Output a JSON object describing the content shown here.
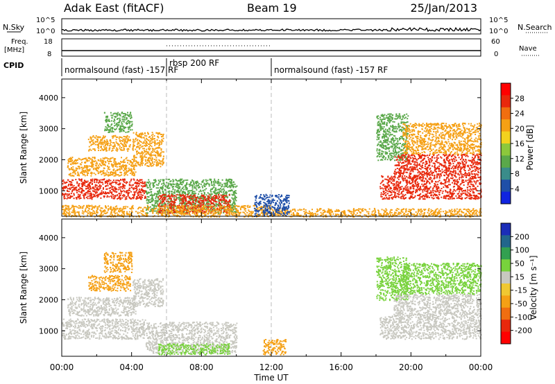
{
  "header": {
    "station": "Adak East (fitACF)",
    "beam": "Beam 19",
    "date": "25/Jan/2013"
  },
  "labels": {
    "nsky": "N.Sky",
    "nsearch": "N.Search",
    "freq_line1": "Freq.",
    "freq_line2": "[MHz]",
    "nave": "Nave",
    "cpid": "CPID",
    "nsky_top": "10^5",
    "nsky_bottom": "10^0",
    "freq_top": "18",
    "freq_bottom": "8",
    "nave_top": "60",
    "nave_bottom": "0",
    "cpid_segments": [
      "normalsound (fast) -157 RF",
      "rbsp 200 RF",
      "normalsound (fast) -157 RF"
    ]
  },
  "chart_data": [
    {
      "type": "heatmap",
      "panel": "power",
      "xlabel": "",
      "ylabel": "Slant Range [km]",
      "x_ticks": [
        "00:00",
        "04:00",
        "08:00",
        "12:00",
        "16:00",
        "20:00",
        "00:00"
      ],
      "y_ticks": [
        1000,
        2000,
        3000,
        4000
      ],
      "x_range_hours": [
        0,
        24
      ],
      "y_range_km": [
        180,
        4600
      ],
      "colorbar": {
        "label": "Power [dB]",
        "ticks": [
          4,
          8,
          12,
          16,
          20,
          24,
          28
        ],
        "colors": [
          "#1024e0",
          "#1f4fa8",
          "#3a8c8a",
          "#5aa84a",
          "#8cc83c",
          "#f2d21e",
          "#f5a015",
          "#f06e10",
          "#e8280c",
          "#ff0000"
        ]
      },
      "region_colors": {
        "weak": "#1f4fa8",
        "mid": "#5aa84a",
        "high": "#f5a015",
        "strong": "#e8280c"
      },
      "regions": [
        {
          "t0": 0.0,
          "t1": 4.8,
          "r0": 750,
          "r1": 1400,
          "level": "strong"
        },
        {
          "t0": 0.3,
          "t1": 4.2,
          "r0": 1500,
          "r1": 2100,
          "level": "high"
        },
        {
          "t0": 1.5,
          "t1": 3.9,
          "r0": 2300,
          "r1": 2800,
          "level": "high"
        },
        {
          "t0": 2.4,
          "t1": 4.0,
          "r0": 2900,
          "r1": 3550,
          "level": "mid"
        },
        {
          "t0": 4.0,
          "t1": 5.8,
          "r0": 1800,
          "r1": 2900,
          "level": "high"
        },
        {
          "t0": 4.8,
          "t1": 10.0,
          "r0": 300,
          "r1": 1400,
          "level": "mid"
        },
        {
          "t0": 5.5,
          "t1": 9.6,
          "r0": 300,
          "r1": 900,
          "level": "strong"
        },
        {
          "t0": 0.0,
          "t1": 12.0,
          "r0": 180,
          "r1": 550,
          "level": "high"
        },
        {
          "t0": 12.0,
          "t1": 24.0,
          "r0": 180,
          "r1": 450,
          "level": "high"
        },
        {
          "t0": 11.0,
          "t1": 13.0,
          "r0": 200,
          "r1": 900,
          "level": "weak"
        },
        {
          "t0": 18.0,
          "t1": 19.8,
          "r0": 2000,
          "r1": 3500,
          "level": "mid"
        },
        {
          "t0": 18.2,
          "t1": 24.0,
          "r0": 750,
          "r1": 1500,
          "level": "strong"
        },
        {
          "t0": 19.0,
          "t1": 24.0,
          "r0": 1500,
          "r1": 2200,
          "level": "strong"
        },
        {
          "t0": 19.5,
          "t1": 24.0,
          "r0": 2200,
          "r1": 3200,
          "level": "high"
        }
      ]
    },
    {
      "type": "heatmap",
      "panel": "velocity",
      "xlabel": "Time UT",
      "ylabel": "Slant Range [km]",
      "x_ticks": [
        "00:00",
        "04:00",
        "08:00",
        "12:00",
        "16:00",
        "20:00",
        "00:00"
      ],
      "y_ticks": [
        1000,
        2000,
        3000,
        4000
      ],
      "x_range_hours": [
        0,
        24
      ],
      "y_range_km": [
        180,
        4600
      ],
      "colorbar": {
        "label": "Velocity [m s⁻¹]",
        "ticks": [
          200,
          100,
          50,
          15,
          -15,
          -50,
          -100,
          -200
        ],
        "colors": [
          "#1b2db8",
          "#22668c",
          "#32a050",
          "#78d23c",
          "#c8c8c0",
          "#f0c832",
          "#f5a015",
          "#f06e10",
          "#e8280c",
          "#ff0000"
        ]
      },
      "region_colors": {
        "ground": "#c8c8c0",
        "pos": "#78d23c",
        "neg": "#f5a015"
      },
      "regions": [
        {
          "t0": 0.0,
          "t1": 4.8,
          "r0": 750,
          "r1": 1400,
          "level": "ground"
        },
        {
          "t0": 0.3,
          "t1": 4.2,
          "r0": 1500,
          "r1": 2100,
          "level": "ground"
        },
        {
          "t0": 1.5,
          "t1": 3.9,
          "r0": 2300,
          "r1": 2800,
          "level": "neg"
        },
        {
          "t0": 2.4,
          "t1": 4.0,
          "r0": 2900,
          "r1": 3550,
          "level": "neg"
        },
        {
          "t0": 4.0,
          "t1": 5.8,
          "r0": 1800,
          "r1": 2700,
          "level": "ground"
        },
        {
          "t0": 4.8,
          "t1": 10.0,
          "r0": 300,
          "r1": 1300,
          "level": "ground"
        },
        {
          "t0": 5.5,
          "t1": 9.6,
          "r0": 250,
          "r1": 600,
          "level": "pos"
        },
        {
          "t0": 11.5,
          "t1": 12.8,
          "r0": 250,
          "r1": 750,
          "level": "neg"
        },
        {
          "t0": 18.0,
          "t1": 19.8,
          "r0": 2000,
          "r1": 3400,
          "level": "pos"
        },
        {
          "t0": 18.2,
          "t1": 24.0,
          "r0": 750,
          "r1": 1500,
          "level": "ground"
        },
        {
          "t0": 19.0,
          "t1": 24.0,
          "r0": 1500,
          "r1": 2200,
          "level": "ground"
        },
        {
          "t0": 19.5,
          "t1": 24.0,
          "r0": 2200,
          "r1": 3200,
          "level": "pos"
        }
      ]
    }
  ]
}
